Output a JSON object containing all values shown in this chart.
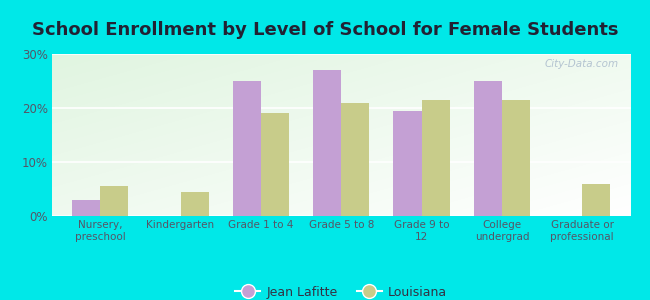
{
  "title": "School Enrollment by Level of School for Female Students",
  "categories": [
    "Nursery,\npreschool",
    "Kindergarten",
    "Grade 1 to 4",
    "Grade 5 to 8",
    "Grade 9 to\n12",
    "College\nundergrad",
    "Graduate or\nprofessional"
  ],
  "jean_lafitte": [
    3.0,
    0.0,
    25.0,
    27.0,
    19.5,
    25.0,
    0.0
  ],
  "louisiana": [
    5.5,
    4.5,
    19.0,
    21.0,
    21.5,
    21.5,
    6.0
  ],
  "jean_color": "#c4a0d4",
  "louisiana_color": "#c8cc8a",
  "background_outer": "#00e8e8",
  "ylim": [
    0,
    30
  ],
  "yticks": [
    0,
    10,
    20,
    30
  ],
  "ytick_labels": [
    "0%",
    "10%",
    "20%",
    "30%"
  ],
  "bar_width": 0.35,
  "title_fontsize": 13,
  "legend_label_jean": "Jean Lafitte",
  "legend_label_louisiana": "Louisiana",
  "watermark": "City-Data.com"
}
